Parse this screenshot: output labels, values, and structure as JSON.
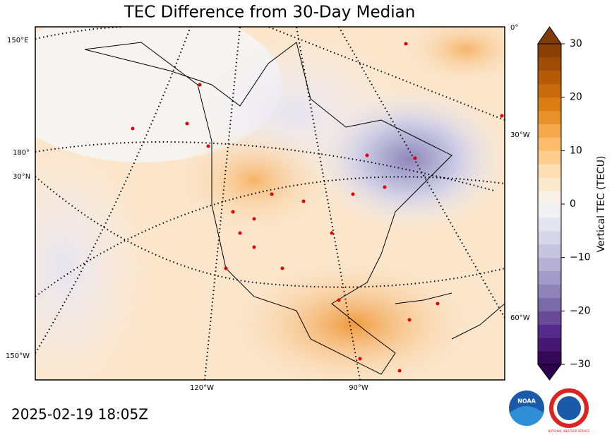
{
  "title": "TEC Difference from 30-Day Median",
  "timestamp": "2025-02-19 18:05Z",
  "colorbar": {
    "label": "Vertical TEC (TECU)",
    "colormap": "PuOr_r",
    "lim": [
      -30,
      30
    ],
    "ticks": [
      30,
      20,
      10,
      0,
      {
        "value": -10,
        "label": "−10"
      },
      {
        "value": -20,
        "label": "−20"
      },
      {
        "value": -30,
        "label": "−30"
      }
    ]
  },
  "graticule_labels": [
    "150°E",
    "180°",
    "30°N",
    "150°W",
    "120°W",
    "90°W",
    "0°",
    "30°W",
    "60°W"
  ],
  "logos": [
    "NOAA",
    "NATIONAL WEATHER SERVICE"
  ]
}
